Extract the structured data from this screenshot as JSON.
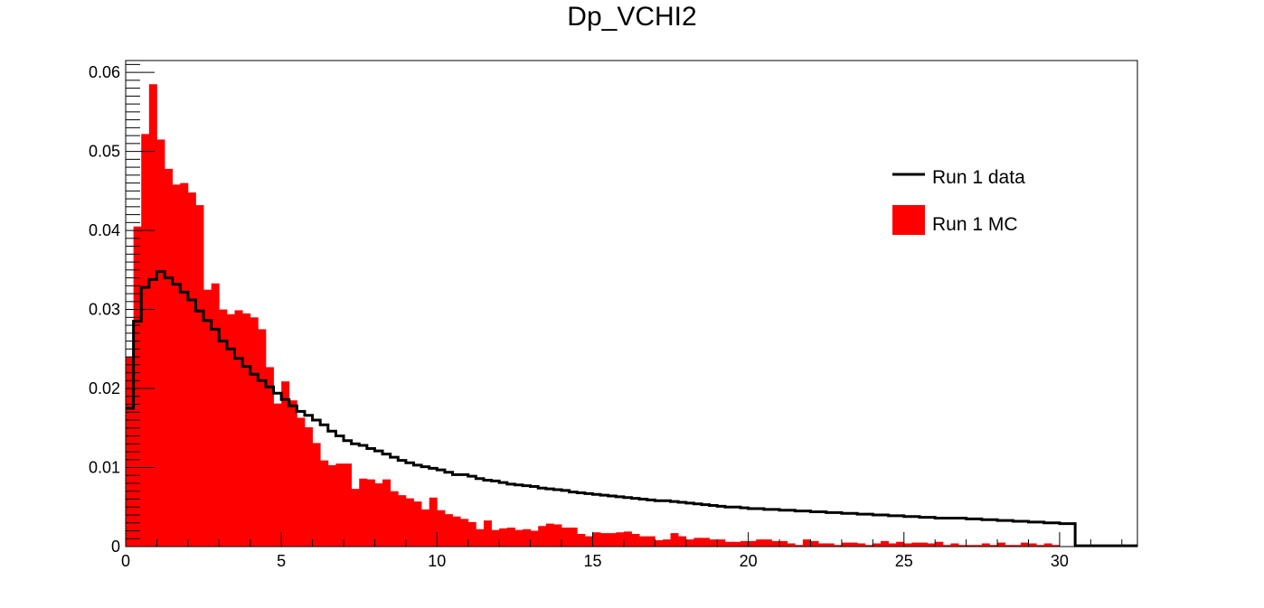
{
  "chart_data": {
    "type": "histogram",
    "title": "Dp_VCHI2",
    "xlabel": "",
    "ylabel": "",
    "xlim": [
      0,
      32.5
    ],
    "ylim": [
      0,
      0.0615
    ],
    "bin_width": 0.25,
    "x_ticks": [
      "0",
      "5",
      "10",
      "15",
      "20",
      "25",
      "30"
    ],
    "y_ticks": [
      "0",
      "0.01",
      "0.02",
      "0.03",
      "0.04",
      "0.05",
      "0.06"
    ],
    "grid": false,
    "legend_position": "top-right",
    "series": [
      {
        "name": "Run 1 data",
        "style": "step-line",
        "color": "#000000",
        "values": [
          0.0175,
          0.0285,
          0.0328,
          0.0338,
          0.0348,
          0.034,
          0.0332,
          0.0322,
          0.0312,
          0.0298,
          0.0286,
          0.0275,
          0.026,
          0.025,
          0.0238,
          0.0228,
          0.0218,
          0.021,
          0.0202,
          0.0194,
          0.0186,
          0.0178,
          0.0171,
          0.0166,
          0.016,
          0.0154,
          0.0146,
          0.014,
          0.0134,
          0.013,
          0.0128,
          0.0124,
          0.0121,
          0.0117,
          0.0113,
          0.0109,
          0.0106,
          0.0103,
          0.0101,
          0.0099,
          0.0097,
          0.0094,
          0.0091,
          0.0091,
          0.0089,
          0.0086,
          0.0084,
          0.0083,
          0.0081,
          0.0079,
          0.0078,
          0.0077,
          0.0076,
          0.0074,
          0.0073,
          0.0072,
          0.0071,
          0.0069,
          0.0068,
          0.0067,
          0.0066,
          0.0065,
          0.0064,
          0.0063,
          0.0062,
          0.0061,
          0.006,
          0.0059,
          0.0058,
          0.0058,
          0.0057,
          0.0056,
          0.0055,
          0.0054,
          0.0053,
          0.0052,
          0.0051,
          0.005,
          0.005,
          0.0049,
          0.0048,
          0.0048,
          0.0047,
          0.0047,
          0.0046,
          0.0046,
          0.0045,
          0.0045,
          0.0044,
          0.0044,
          0.0043,
          0.0043,
          0.0042,
          0.0042,
          0.0041,
          0.0041,
          0.004,
          0.004,
          0.0039,
          0.0039,
          0.0038,
          0.0038,
          0.0037,
          0.0037,
          0.0036,
          0.0036,
          0.0036,
          0.0036,
          0.0035,
          0.0035,
          0.0034,
          0.0034,
          0.0033,
          0.0033,
          0.0032,
          0.0032,
          0.0031,
          0.0031,
          0.003,
          0.003,
          0.0029,
          0.0029,
          0.0001,
          0.0001,
          0.0001,
          0.0001,
          0.0001,
          0.0001,
          0.0001,
          0.0001
        ]
      },
      {
        "name": "Run 1 MC",
        "style": "filled-bars",
        "color": "#ff0000",
        "values": [
          0.024,
          0.0405,
          0.0522,
          0.0585,
          0.0515,
          0.0478,
          0.0458,
          0.046,
          0.0448,
          0.0432,
          0.0325,
          0.0333,
          0.03,
          0.0294,
          0.0299,
          0.0295,
          0.029,
          0.0275,
          0.0227,
          0.0181,
          0.0209,
          0.0185,
          0.0163,
          0.0151,
          0.0131,
          0.0109,
          0.0103,
          0.0105,
          0.0105,
          0.0073,
          0.0086,
          0.0085,
          0.008,
          0.0085,
          0.007,
          0.0065,
          0.0061,
          0.0057,
          0.0047,
          0.0062,
          0.0046,
          0.0041,
          0.0038,
          0.0035,
          0.0031,
          0.0022,
          0.0033,
          0.0021,
          0.0023,
          0.0024,
          0.0021,
          0.0022,
          0.002,
          0.0026,
          0.0029,
          0.0028,
          0.0024,
          0.0024,
          0.0016,
          0.0013,
          0.0018,
          0.0017,
          0.0017,
          0.0018,
          0.0019,
          0.0016,
          0.0013,
          0.0013,
          0.0008,
          0.0009,
          0.0017,
          0.0013,
          0.0009,
          0.0011,
          0.0011,
          0.0009,
          0.0009,
          0.0006,
          0.0006,
          0.0007,
          0.0007,
          0.0009,
          0.0009,
          0.0007,
          0.0007,
          0.0004,
          0.0002,
          0.0009,
          0.0007,
          0.0004,
          0.0004,
          0.0002,
          0.0005,
          0.0005,
          0.0004,
          0.0002,
          0.0004,
          0.0007,
          0.0004,
          0.0006,
          0.0004,
          0.0005,
          0.0005,
          0.0004,
          0.0006,
          0.0002,
          0.0004,
          0.0002,
          0.0002,
          0.0002,
          0.0004,
          0.0002,
          0.0005,
          0.0002,
          0.0002,
          0.0005,
          0.0004,
          0.0002,
          0.0004,
          0.0002,
          0.0,
          0.0,
          0.0,
          0.0,
          0.0,
          0.0,
          0.0,
          0.0,
          0.0,
          0.0
        ]
      }
    ]
  }
}
